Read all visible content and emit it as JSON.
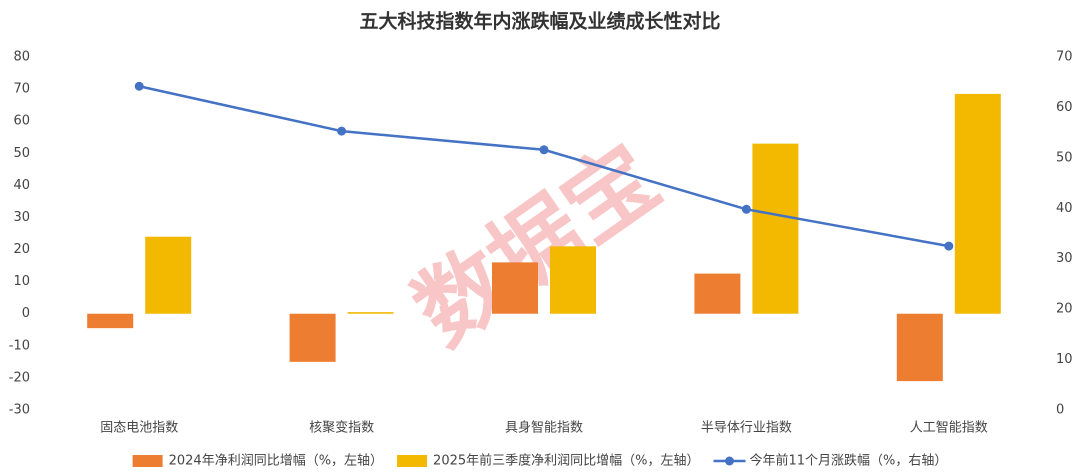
{
  "chart_data": {
    "type": "bar-line",
    "title": "五大科技指数年内涨跌幅及业绩成长性对比",
    "watermark": "数据宝",
    "categories": [
      "固态电池指数",
      "核聚变指数",
      "具身智能指数",
      "半导体行业指数",
      "人工智能指数"
    ],
    "series": [
      {
        "name": "2024年净利润同比增幅（%，左轴）",
        "type": "bar",
        "color": "#ed7d31",
        "values": [
          -4.5,
          -15,
          16,
          12.5,
          -21
        ]
      },
      {
        "name": "2025年前三季度净利润同比增幅（%，左轴）",
        "type": "bar",
        "color": "#f2b900",
        "values": [
          24,
          0.5,
          21,
          53,
          68.5
        ]
      },
      {
        "name": "今年前11个月涨跌幅（%，右轴）",
        "type": "line",
        "axis": "y2",
        "color": "#4472c4",
        "values": [
          64.2,
          55.3,
          51.6,
          39.8,
          32.5
        ]
      }
    ],
    "ylim": [
      -30,
      80
    ],
    "yticks": [
      -30,
      -20,
      -10,
      0,
      10,
      20,
      30,
      40,
      50,
      60,
      70,
      80
    ],
    "y2lim": [
      0,
      70
    ],
    "y2ticks": [
      0,
      10,
      20,
      30,
      40,
      50,
      60,
      70
    ],
    "grid": false,
    "legend": "bottom"
  }
}
